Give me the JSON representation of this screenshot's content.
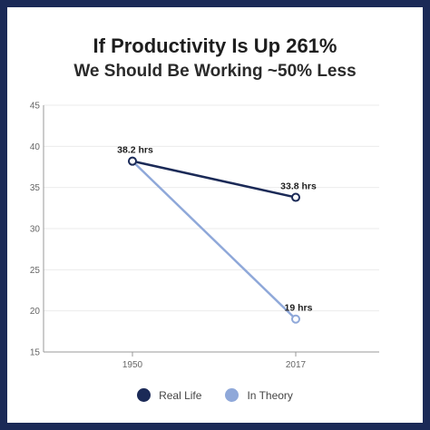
{
  "chart_data": {
    "type": "line",
    "title": "If Productivity Is Up 261%",
    "subtitle": "We Should Be Working ~50% Less",
    "categories": [
      "1950",
      "2017"
    ],
    "ylim": [
      15,
      45
    ],
    "yticks": [
      15,
      20,
      25,
      30,
      35,
      40,
      45
    ],
    "grid": true,
    "legend": "bottom",
    "series": [
      {
        "name": "Real Life",
        "values": [
          38.2,
          33.8
        ],
        "labels": [
          "38.2 hrs",
          "33.8 hrs"
        ],
        "color": "#1b2a57"
      },
      {
        "name": "In Theory",
        "values": [
          38.2,
          19
        ],
        "labels": [
          "",
          "19 hrs"
        ],
        "color": "#8fa8d9"
      }
    ]
  }
}
